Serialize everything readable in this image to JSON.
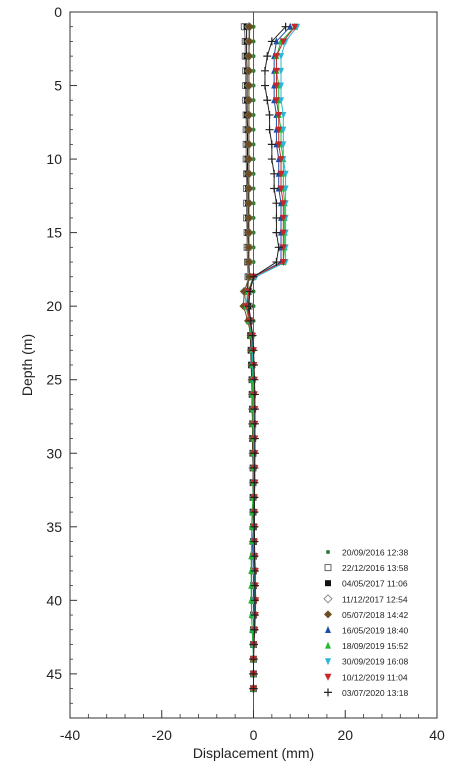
{
  "chart_data": {
    "type": "line",
    "xlabel": "Displacement (mm)",
    "ylabel": "Depth (m)",
    "xlim": [
      -40,
      40
    ],
    "ylim": [
      0,
      48
    ],
    "y_inverted": true,
    "x_ticks": [
      -40,
      -20,
      0,
      20,
      40
    ],
    "y_ticks": [
      0,
      5,
      10,
      15,
      20,
      25,
      30,
      35,
      40,
      45
    ],
    "grid": false,
    "legend_position": "bottom-right",
    "depths": [
      1,
      2,
      3,
      4,
      5,
      6,
      7,
      8,
      9,
      10,
      11,
      12,
      13,
      14,
      15,
      16,
      17,
      18,
      19,
      20,
      21,
      22,
      23,
      24,
      25,
      26,
      27,
      28,
      29,
      30,
      31,
      32,
      33,
      34,
      35,
      36,
      37,
      38,
      39,
      40,
      41,
      42,
      43,
      44,
      45,
      46
    ],
    "series": [
      {
        "name": "20/09/2016 12:38",
        "color": "#2e7d32",
        "marker": "dot",
        "values": [
          0,
          0,
          0,
          0,
          0,
          0,
          0,
          0,
          0,
          0,
          0,
          0,
          0,
          0,
          0,
          0,
          0,
          0,
          0,
          0,
          0,
          0,
          0,
          0,
          0,
          0,
          0,
          0,
          0,
          0,
          0,
          0,
          0,
          0,
          0,
          0,
          0,
          0,
          0,
          0,
          0,
          0,
          0,
          0,
          0,
          0
        ]
      },
      {
        "name": "22/12/2016 13:58",
        "color": "#666666",
        "marker": "square-open",
        "values": [
          -2,
          -1.8,
          -1.8,
          -1.7,
          -1.7,
          -1.7,
          -1.6,
          -1.6,
          -1.6,
          -1.6,
          -1.5,
          -1.5,
          -1.5,
          -1.5,
          -1.4,
          -1.4,
          -1.3,
          -1.2,
          -1.2,
          -1.0,
          -0.8,
          -0.6,
          -0.5,
          -0.4,
          -0.3,
          -0.3,
          -0.2,
          -0.2,
          -0.2,
          -0.1,
          -0.1,
          -0.1,
          -0.1,
          -0.1,
          0,
          0,
          0,
          0,
          0,
          0,
          0,
          0,
          0,
          0,
          0,
          0
        ]
      },
      {
        "name": "04/05/2017 11:06",
        "color": "#111111",
        "marker": "square-filled",
        "values": [
          -1.5,
          -1.5,
          -1.5,
          -1.4,
          -1.4,
          -1.4,
          -1.4,
          -1.3,
          -1.3,
          -1.3,
          -1.3,
          -1.2,
          -1.2,
          -1.2,
          -1.2,
          -1.1,
          -1.1,
          -1.0,
          -1.4,
          -1.2,
          -1.0,
          -0.7,
          -0.6,
          -0.5,
          -0.4,
          -0.3,
          -0.3,
          -0.2,
          -0.2,
          -0.2,
          -0.1,
          -0.1,
          -0.1,
          -0.1,
          0,
          0,
          0,
          0,
          0,
          0,
          0,
          0,
          0,
          0,
          0,
          0
        ]
      },
      {
        "name": "11/12/2017 12:54",
        "color": "#888888",
        "marker": "diamond-open",
        "values": [
          -1,
          -1,
          -1,
          -1,
          -1,
          -1,
          -1,
          -1,
          -1,
          -1,
          -1,
          -1,
          -1,
          -1,
          -1,
          -1,
          -1,
          -1,
          -2,
          -1.5,
          -1.0,
          -0.5,
          -0.4,
          -0.3,
          -0.3,
          -0.2,
          -0.2,
          -0.2,
          -0.1,
          -0.1,
          -0.1,
          0,
          0,
          0,
          0,
          0,
          0.1,
          0.1,
          0.1,
          0.1,
          0.1,
          0.1,
          0,
          0,
          0,
          0
        ]
      },
      {
        "name": "05/07/2018 14:42",
        "color": "#6b4e1f",
        "marker": "diamond-filled",
        "values": [
          -0.8,
          -0.9,
          -1,
          -1,
          -1,
          -1,
          -1,
          -1,
          -1,
          -1,
          -1,
          -1,
          -1,
          -1,
          -1,
          -1,
          -1,
          -0.8,
          -2.0,
          -2.2,
          -1.2,
          -0.6,
          -0.5,
          -0.4,
          -0.3,
          -0.2,
          -0.2,
          -0.2,
          -0.1,
          -0.1,
          0,
          0,
          0.1,
          0.1,
          0.1,
          0.1,
          0.1,
          0.1,
          0.1,
          0.1,
          0.1,
          0.1,
          0,
          0,
          0,
          0
        ]
      },
      {
        "name": "16/05/2019 18:40",
        "color": "#1f4fa8",
        "marker": "triangle-up",
        "values": [
          8,
          5,
          4.5,
          4.5,
          4.5,
          4.5,
          5,
          5,
          5,
          5.5,
          5.5,
          5.5,
          6,
          6,
          6,
          6,
          6,
          0,
          -1,
          -1.5,
          -1,
          -0.5,
          -0.3,
          -0.2,
          -0.2,
          -0.1,
          -0.1,
          0,
          0,
          0,
          0,
          0,
          0,
          0,
          0,
          -0.2,
          -0.3,
          -0.4,
          -0.4,
          -0.4,
          -0.4,
          -0.3,
          -0.1,
          0,
          0,
          0
        ]
      },
      {
        "name": "18/09/2019 15:52",
        "color": "#22bb33",
        "marker": "triangle-up",
        "values": [
          9,
          6,
          5,
          5,
          5.5,
          5.5,
          5.5,
          6,
          6,
          6.5,
          6.5,
          6.5,
          6.8,
          6.8,
          6.8,
          6.8,
          6.5,
          0,
          -1.2,
          -1.6,
          -1,
          -0.5,
          -0.3,
          -0.3,
          -0.2,
          -0.2,
          -0.1,
          -0.1,
          0,
          0,
          0,
          0,
          -0.1,
          -0.3,
          -0.4,
          -0.4,
          -0.5,
          -0.5,
          -0.5,
          -0.5,
          -0.4,
          -0.3,
          -0.1,
          0,
          0,
          0
        ]
      },
      {
        "name": "30/09/2019 16:08",
        "color": "#29b6d8",
        "marker": "triangle-down",
        "values": [
          9.5,
          7,
          6,
          6,
          6,
          6,
          6.5,
          6.5,
          6.5,
          6.5,
          7,
          7,
          7,
          7,
          7,
          7,
          7,
          0.5,
          -1.2,
          -1.6,
          -0.8,
          -0.3,
          -0.2,
          -0.1,
          0,
          0.1,
          0.1,
          0.1,
          0.2,
          0.2,
          0.2,
          0.2,
          0.2,
          0.2,
          0.2,
          0.1,
          0.1,
          0.1,
          0.2,
          0.2,
          0.1,
          0.1,
          0,
          0,
          0,
          0
        ]
      },
      {
        "name": "10/12/2019 11:04",
        "color": "#c62828",
        "marker": "triangle-down-filled",
        "values": [
          9,
          6.5,
          5,
          5,
          5,
          5,
          5.5,
          5.5,
          5.5,
          6,
          6,
          6,
          6.5,
          6.5,
          6.5,
          6.5,
          6.5,
          0,
          -1,
          -1.5,
          -0.8,
          -0.2,
          0,
          0.1,
          0.2,
          0.2,
          0.3,
          0.3,
          0.3,
          0.3,
          0.3,
          0.3,
          0.2,
          0.2,
          0.2,
          0.2,
          0.3,
          0.4,
          0.4,
          0.5,
          0.4,
          0.3,
          0.1,
          0,
          0,
          0
        ]
      },
      {
        "name": "03/07/2020 13:18",
        "color": "#222222",
        "marker": "plus",
        "values": [
          7,
          4,
          3,
          2.5,
          2.5,
          3,
          3.5,
          3.5,
          4,
          4,
          4.5,
          4.5,
          5,
          5,
          5,
          5.5,
          5,
          0,
          -0.8,
          -1,
          -0.6,
          -0.2,
          0,
          0.1,
          0.2,
          0.3,
          0.3,
          0.3,
          0.3,
          0.3,
          0.2,
          0.2,
          0.2,
          0.2,
          0.2,
          0.2,
          0.2,
          0.3,
          0.3,
          0.3,
          0.3,
          0.2,
          0.1,
          0,
          0,
          0
        ]
      }
    ]
  }
}
